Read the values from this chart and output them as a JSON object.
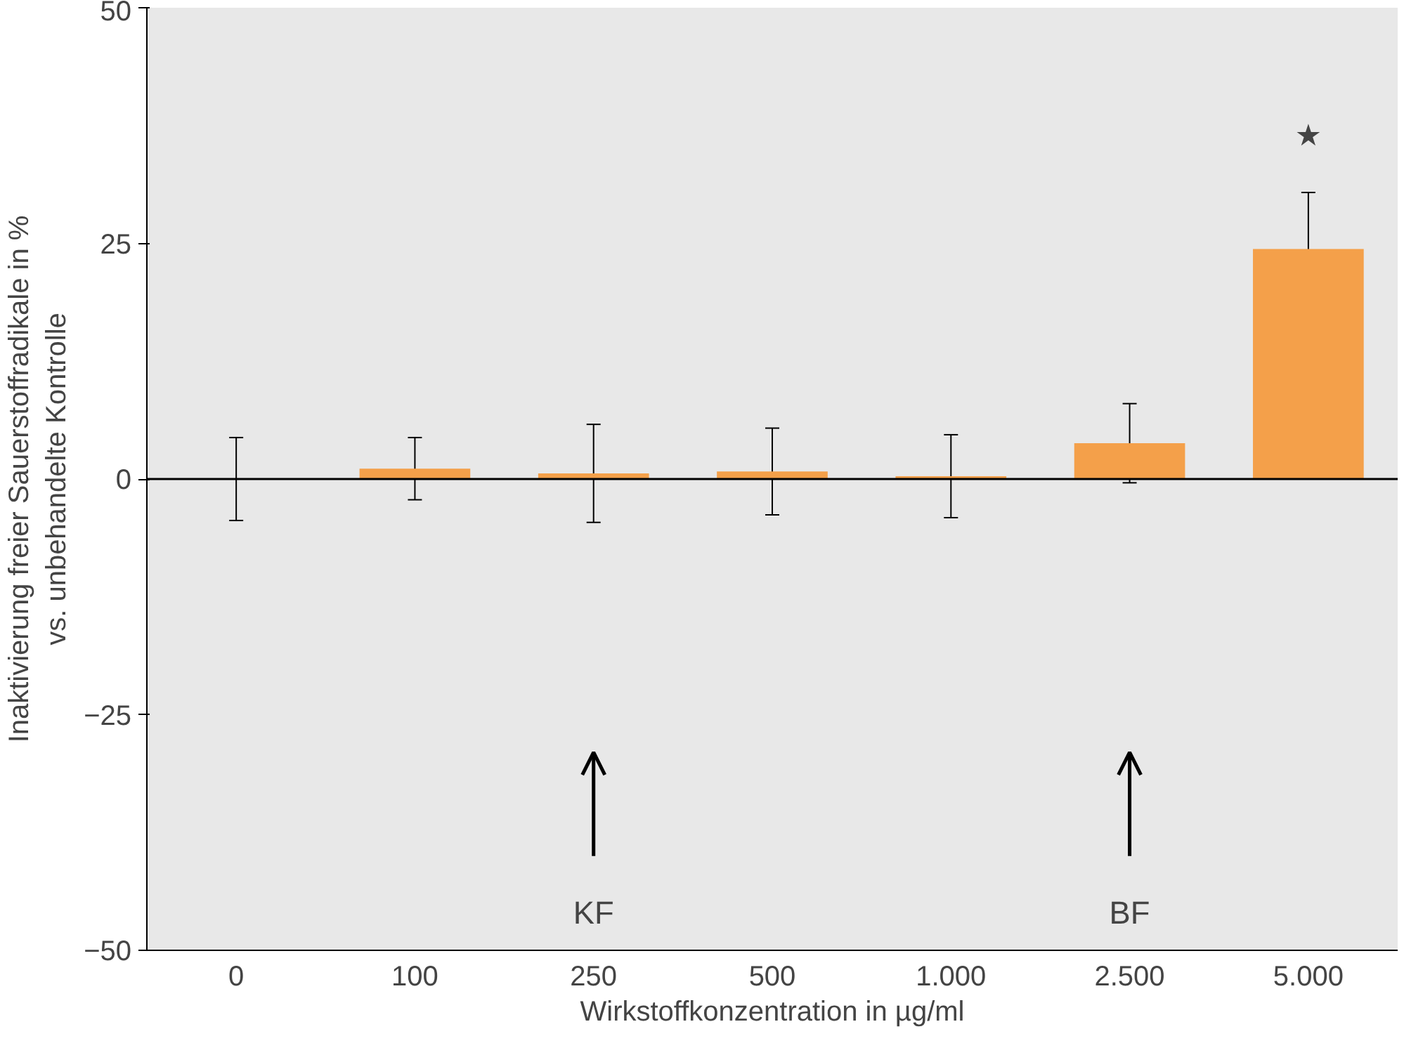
{
  "chart_data": {
    "type": "bar",
    "xlabel": "Wirkstoffkonzentration in µg/ml",
    "ylabel": "Inaktivierung freier Sauerstoffradikale in %\nvs. unbehandelte Kontrolle",
    "categories": [
      "0",
      "100",
      "250",
      "500",
      "1.000",
      "2.500",
      "5.000"
    ],
    "values": [
      0,
      1.1,
      0.6,
      0.8,
      0.3,
      3.8,
      24.4
    ],
    "errors": [
      4.4,
      3.3,
      5.2,
      4.6,
      4.4,
      4.2,
      6.0
    ],
    "color": "#f4a04a",
    "ylim": [
      -50,
      50
    ],
    "yticks": [
      -50,
      -25,
      0,
      25,
      50
    ],
    "ref_lines": [
      {
        "axis": "y",
        "value": 0
      }
    ],
    "annotations": [
      "★",
      "KF",
      "BF"
    ],
    "grid": false
  }
}
